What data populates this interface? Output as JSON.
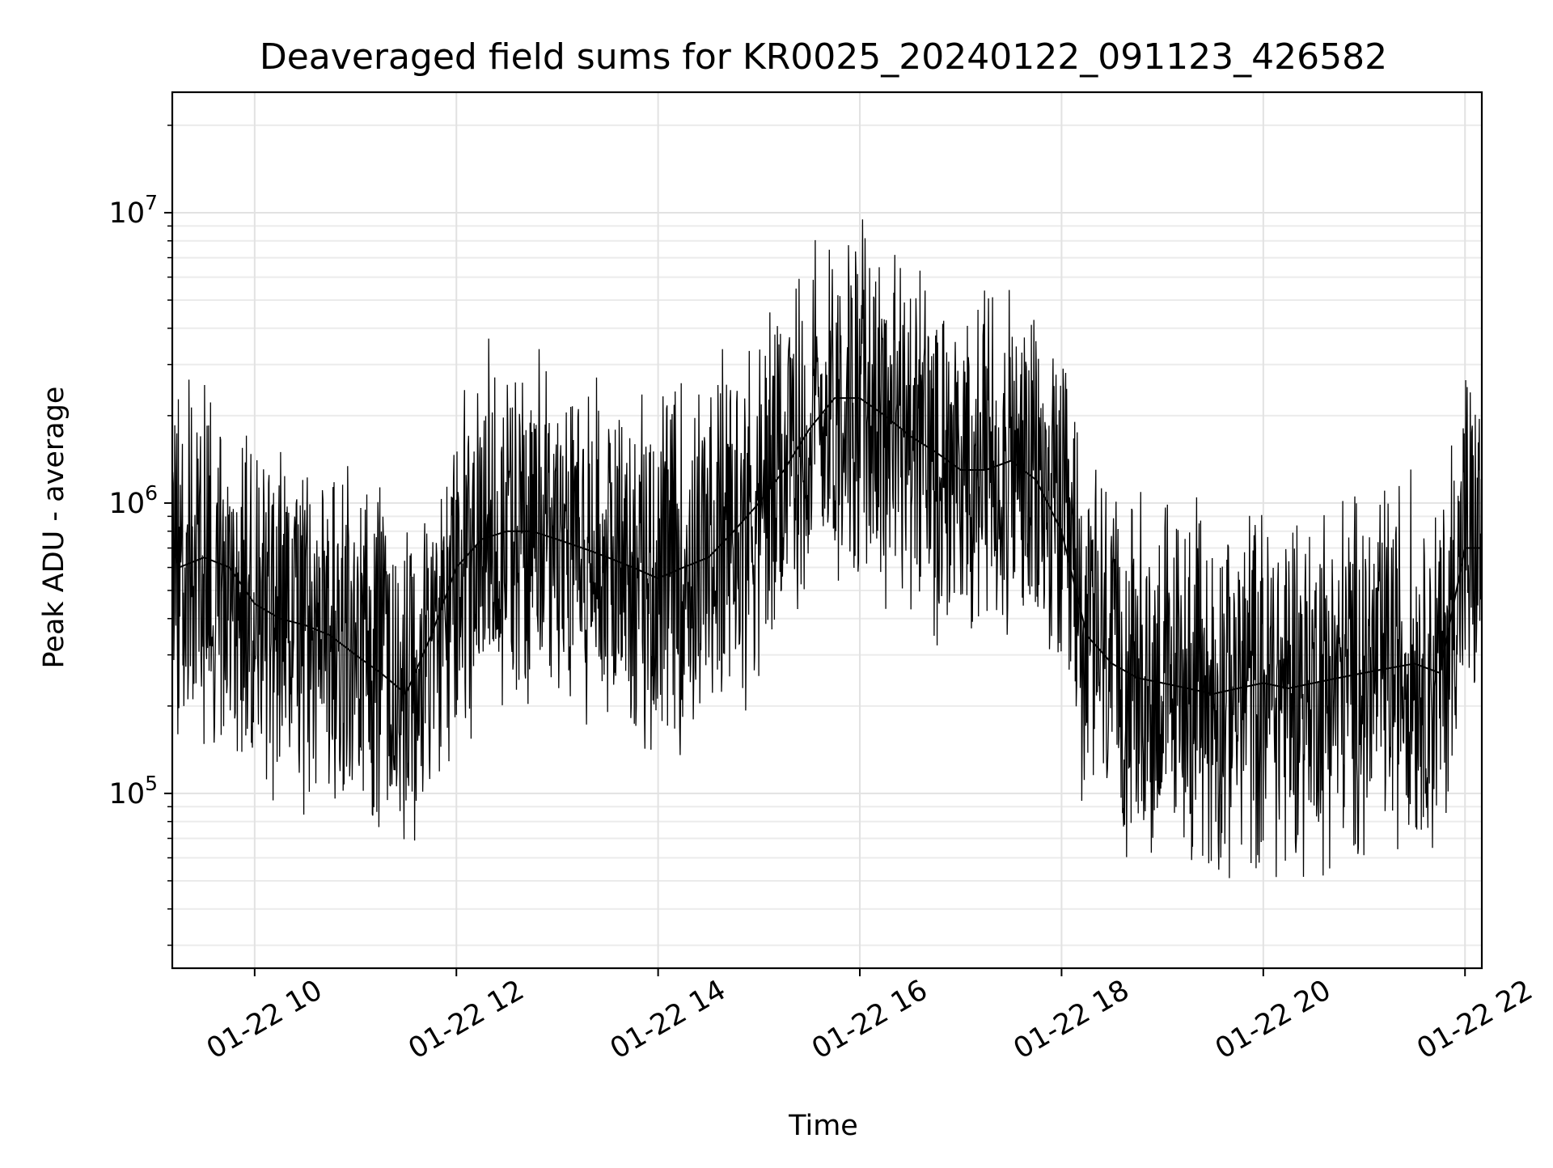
{
  "chart_data": {
    "type": "line",
    "title": "Deaveraged field sums for KR0025_20240122_091123_426582",
    "xlabel": "Time",
    "ylabel": "Peak ADU - average",
    "yscale": "log",
    "ylim": [
      25000,
      26000000
    ],
    "xlim": [
      "2024-01-22T09:11",
      "2024-01-22T22:10"
    ],
    "grid": true,
    "legend": "none",
    "line_color": "#000000",
    "x_ticks": [
      {
        "value": "2024-01-22T10:00",
        "label": "01-22 10"
      },
      {
        "value": "2024-01-22T12:00",
        "label": "01-22 12"
      },
      {
        "value": "2024-01-22T14:00",
        "label": "01-22 14"
      },
      {
        "value": "2024-01-22T16:00",
        "label": "01-22 16"
      },
      {
        "value": "2024-01-22T18:00",
        "label": "01-22 18"
      },
      {
        "value": "2024-01-22T20:00",
        "label": "01-22 20"
      },
      {
        "value": "2024-01-22T22:00",
        "label": "01-22 22"
      }
    ],
    "y_ticks": [
      {
        "value": 100000,
        "base": "10",
        "exp": "5"
      },
      {
        "value": 1000000,
        "base": "10",
        "exp": "6"
      },
      {
        "value": 10000000,
        "base": "10",
        "exp": "7"
      }
    ],
    "series": [
      {
        "x": [
          "2024-01-22T09:11",
          "2024-01-22T09:15",
          "2024-01-22T09:30",
          "2024-01-22T09:45",
          "2024-01-22T10:00",
          "2024-01-22T10:15",
          "2024-01-22T10:30",
          "2024-01-22T10:45",
          "2024-01-22T11:00",
          "2024-01-22T11:15",
          "2024-01-22T11:30",
          "2024-01-22T11:45",
          "2024-01-22T12:00",
          "2024-01-22T12:15",
          "2024-01-22T12:30",
          "2024-01-22T12:45",
          "2024-01-22T13:00",
          "2024-01-22T13:15",
          "2024-01-22T13:30",
          "2024-01-22T13:45",
          "2024-01-22T14:00",
          "2024-01-22T14:15",
          "2024-01-22T14:30",
          "2024-01-22T14:45",
          "2024-01-22T15:00",
          "2024-01-22T15:15",
          "2024-01-22T15:30",
          "2024-01-22T15:45",
          "2024-01-22T16:00",
          "2024-01-22T16:15",
          "2024-01-22T16:30",
          "2024-01-22T16:45",
          "2024-01-22T17:00",
          "2024-01-22T17:15",
          "2024-01-22T17:30",
          "2024-01-22T17:45",
          "2024-01-22T18:00",
          "2024-01-22T18:15",
          "2024-01-22T18:30",
          "2024-01-22T18:45",
          "2024-01-22T19:00",
          "2024-01-22T19:15",
          "2024-01-22T19:30",
          "2024-01-22T19:45",
          "2024-01-22T20:00",
          "2024-01-22T20:15",
          "2024-01-22T20:30",
          "2024-01-22T20:45",
          "2024-01-22T21:00",
          "2024-01-22T21:15",
          "2024-01-22T21:30",
          "2024-01-22T21:45",
          "2024-01-22T22:00",
          "2024-01-22T22:10"
        ],
        "y": [
          700000,
          600000,
          650000,
          600000,
          450000,
          400000,
          380000,
          350000,
          300000,
          260000,
          220000,
          350000,
          600000,
          750000,
          800000,
          800000,
          750000,
          700000,
          650000,
          600000,
          550000,
          600000,
          650000,
          800000,
          1000000,
          1300000,
          1800000,
          2300000,
          2300000,
          2000000,
          1700000,
          1500000,
          1300000,
          1300000,
          1400000,
          1200000,
          800000,
          350000,
          280000,
          250000,
          240000,
          230000,
          220000,
          230000,
          240000,
          230000,
          240000,
          250000,
          260000,
          270000,
          280000,
          260000,
          700000,
          700000
        ]
      }
    ]
  }
}
